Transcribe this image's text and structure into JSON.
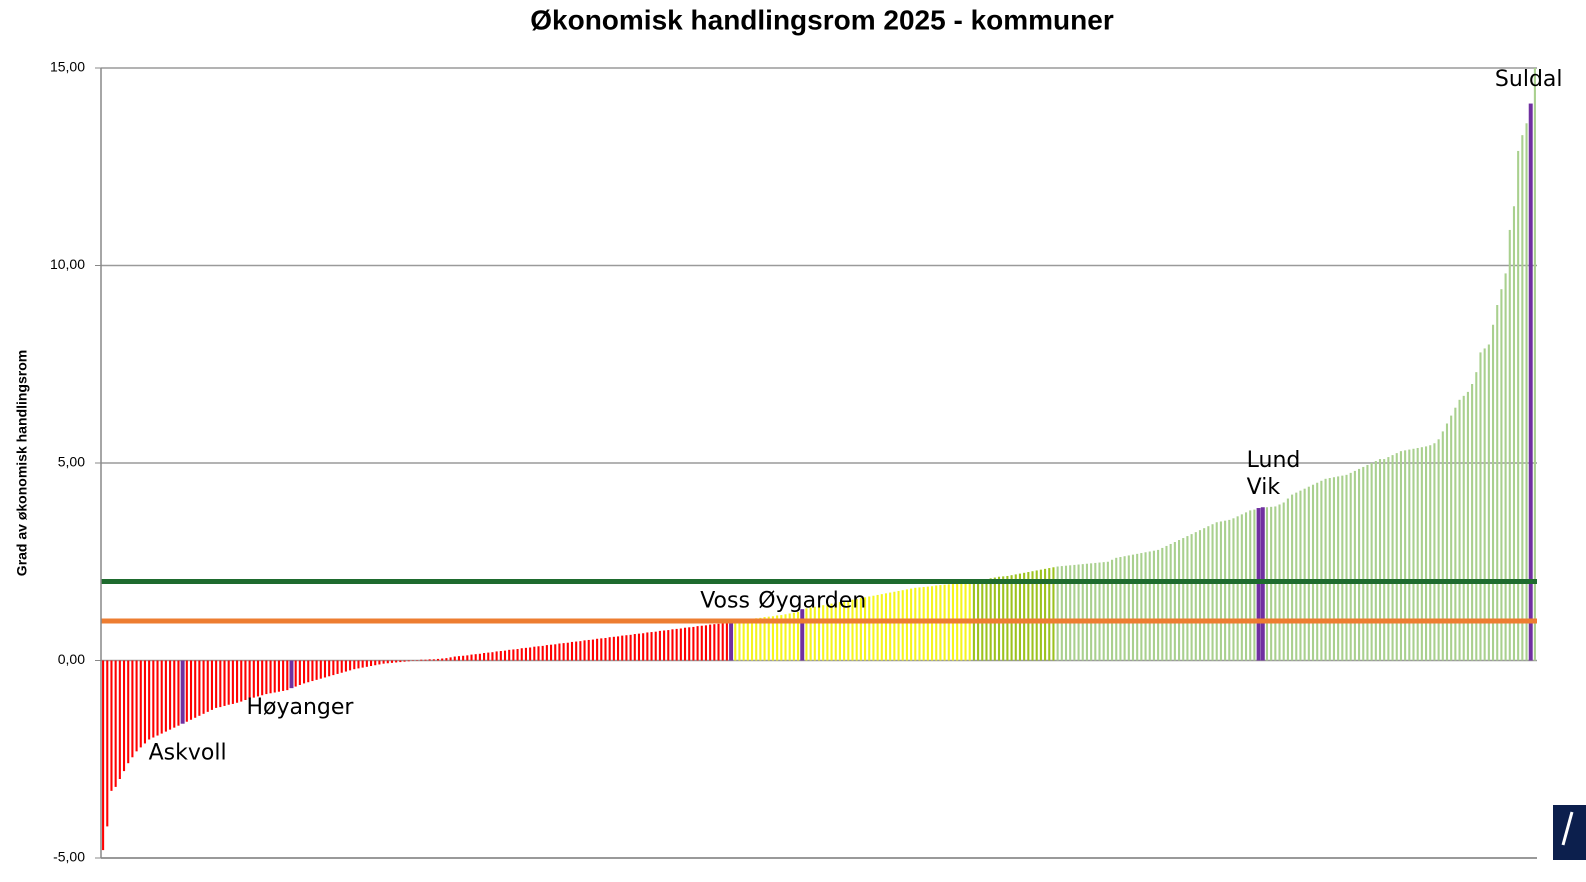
{
  "chart_data": {
    "type": "bar",
    "title": "Økonomisk handlingsrom 2025 - kommuner",
    "ylabel": "Grad av økonomisk handlingsrom",
    "ylim": [
      -5,
      15
    ],
    "yticks": [
      {
        "value": -5,
        "label": "-5,00"
      },
      {
        "value": 0,
        "label": "0,00"
      },
      {
        "value": 5,
        "label": "5,00"
      },
      {
        "value": 10,
        "label": "10,00"
      },
      {
        "value": 15,
        "label": "15,00"
      }
    ],
    "grid": true,
    "reference_lines": [
      {
        "value": 2,
        "color": "#1e6b2e"
      },
      {
        "value": 1,
        "color": "#ed7d31"
      }
    ],
    "series": [
      {
        "color": "#ff0000",
        "values": [
          -4.8,
          -4.2,
          -3.3,
          -3.2,
          -3.0,
          -2.8,
          -2.6,
          -2.45,
          -2.3,
          -2.2,
          -2.1,
          -2.0,
          -1.95,
          -1.9,
          -1.85,
          -1.8,
          -1.75,
          -1.7,
          -1.65
        ]
      },
      {
        "color": "#7030a0",
        "label": "Askvoll",
        "values": [
          -1.6
        ]
      },
      {
        "color": "#ff0000",
        "values": [
          -1.55,
          -1.5,
          -1.45,
          -1.4,
          -1.35,
          -1.3,
          -1.25,
          -1.2,
          -1.18,
          -1.15,
          -1.12,
          -1.1,
          -1.07,
          -1.04,
          -1.0,
          -0.97,
          -0.94,
          -0.91,
          -0.88,
          -0.85,
          -0.83,
          -0.81,
          -0.79,
          -0.77,
          -0.75
        ]
      },
      {
        "color": "#7030a0",
        "label": "Høyanger",
        "values": [
          -0.7
        ]
      },
      {
        "color": "#ff0000",
        "values": [
          -0.66,
          -0.62,
          -0.58,
          -0.55,
          -0.52,
          -0.49,
          -0.46,
          -0.43,
          -0.4,
          -0.37,
          -0.34,
          -0.31,
          -0.28,
          -0.25,
          -0.22,
          -0.2,
          -0.18,
          -0.16,
          -0.14,
          -0.12,
          -0.1,
          -0.08,
          -0.07,
          -0.06,
          -0.05,
          -0.04,
          -0.03,
          -0.02,
          -0.01,
          0.01,
          0.02,
          0.02,
          0.03,
          0.03,
          0.04,
          0.05,
          0.06,
          0.08,
          0.1,
          0.11,
          0.12,
          0.13,
          0.15,
          0.16,
          0.17,
          0.19,
          0.2,
          0.21,
          0.23,
          0.24,
          0.25,
          0.27,
          0.28,
          0.29,
          0.31,
          0.32,
          0.33,
          0.35,
          0.36,
          0.37,
          0.39,
          0.4,
          0.41,
          0.43,
          0.44,
          0.45,
          0.47,
          0.48,
          0.49,
          0.51,
          0.52,
          0.53,
          0.55,
          0.56,
          0.57,
          0.59,
          0.6,
          0.61,
          0.63,
          0.64,
          0.65,
          0.67,
          0.68,
          0.69,
          0.71,
          0.72,
          0.73,
          0.75,
          0.76,
          0.77,
          0.79,
          0.8,
          0.81,
          0.83,
          0.84,
          0.85,
          0.87,
          0.88,
          0.89,
          0.91,
          0.92,
          0.93,
          0.95,
          0.97
        ]
      },
      {
        "color": "#7030a0",
        "label": "Voss",
        "values": [
          1.0
        ]
      },
      {
        "color": "#f5f51e",
        "values": [
          1.01,
          1.02,
          1.03,
          1.05,
          1.06,
          1.07,
          1.08,
          1.1,
          1.11,
          1.12,
          1.14,
          1.15,
          1.17,
          1.19,
          1.21,
          1.23
        ]
      },
      {
        "color": "#7030a0",
        "label": "Øygarden",
        "values": [
          1.3
        ]
      },
      {
        "color": "#f5f51e",
        "values": [
          1.32,
          1.34,
          1.36,
          1.38,
          1.4,
          1.42,
          1.44,
          1.46,
          1.48,
          1.5,
          1.52,
          1.54,
          1.56,
          1.58,
          1.6,
          1.62,
          1.64,
          1.66,
          1.68,
          1.7,
          1.72,
          1.74,
          1.76,
          1.78,
          1.8,
          1.82,
          1.84,
          1.85,
          1.86,
          1.87,
          1.88,
          1.9,
          1.91,
          1.92,
          1.93,
          1.94,
          1.95,
          1.96,
          1.97,
          1.98
        ]
      },
      {
        "color": "#9cc21e",
        "values": [
          2.0,
          2.02,
          2.04,
          2.06,
          2.08,
          2.1,
          2.12,
          2.13,
          2.14,
          2.16,
          2.18,
          2.2,
          2.22,
          2.24,
          2.26,
          2.28,
          2.3,
          2.32,
          2.34,
          2.36
        ]
      },
      {
        "color": "#a9d08e",
        "values": [
          2.38,
          2.39,
          2.4,
          2.41,
          2.42,
          2.43,
          2.44,
          2.45,
          2.46,
          2.47,
          2.48,
          2.49,
          2.5,
          2.55,
          2.6,
          2.62,
          2.64,
          2.66,
          2.68,
          2.7,
          2.72,
          2.74,
          2.76,
          2.78,
          2.8,
          2.85,
          2.9,
          2.95,
          3.0,
          3.05,
          3.1,
          3.15,
          3.2,
          3.25,
          3.3,
          3.35,
          3.4,
          3.45,
          3.5,
          3.52,
          3.54,
          3.56,
          3.6,
          3.65,
          3.7,
          3.75,
          3.8,
          3.82
        ]
      },
      {
        "color": "#7030a0",
        "labels": [
          "Lund",
          "Vik"
        ],
        "values": [
          3.86,
          3.88
        ]
      },
      {
        "color": "#a9d08e",
        "values": [
          3.88,
          3.89,
          3.9,
          3.95,
          4.0,
          4.1,
          4.2,
          4.25,
          4.3,
          4.35,
          4.4,
          4.45,
          4.5,
          4.55,
          4.6,
          4.62,
          4.64,
          4.66,
          4.68,
          4.7,
          4.75,
          4.8,
          4.85,
          4.9,
          4.95,
          5.0,
          5.05,
          5.1,
          5.1,
          5.15,
          5.2,
          5.25,
          5.3,
          5.32,
          5.34,
          5.36,
          5.38,
          5.4,
          5.42,
          5.45,
          5.5,
          5.6,
          5.8,
          6.0,
          6.2,
          6.4,
          6.6,
          6.7,
          6.8,
          7.0,
          7.3,
          7.8,
          7.9,
          8.0,
          8.5,
          9.0,
          9.4,
          9.8,
          10.9,
          11.5,
          12.9,
          13.3,
          13.6
        ]
      },
      {
        "color": "#7030a0",
        "label": "Suldal",
        "values": [
          14.1
        ]
      },
      {
        "color": "#a9d08e",
        "values": [
          15.0
        ]
      }
    ]
  }
}
